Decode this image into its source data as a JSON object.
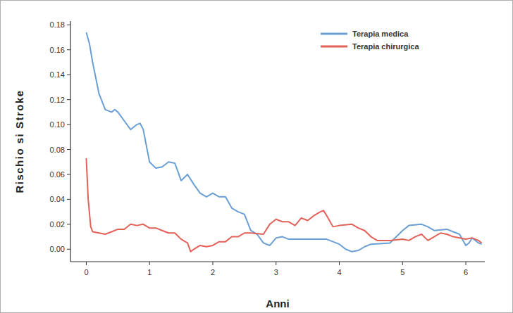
{
  "chart_data": {
    "type": "line",
    "x_label": "Anni",
    "y_label": "Rischio si Stroke",
    "legend": "top-right",
    "grid": false,
    "xlim": [
      -0.25,
      6.3
    ],
    "xticks": [
      0,
      1,
      2,
      3,
      4,
      5,
      6
    ],
    "ylim": [
      -0.01,
      0.183
    ],
    "yticks": [
      {
        "value": 0,
        "label": "0.00"
      },
      {
        "value": 0.02,
        "label": "0.02"
      },
      {
        "value": 0.04,
        "label": "0.04"
      },
      {
        "value": 0.06,
        "label": "0.06"
      },
      {
        "value": 0.08,
        "label": "0.08"
      },
      {
        "value": 0.1,
        "label": "0.10"
      },
      {
        "value": 0.12,
        "label": "0.12"
      },
      {
        "value": 0.14,
        "label": "0.14"
      },
      {
        "value": 0.16,
        "label": "0.16"
      },
      {
        "value": 0.18,
        "label": "0.18"
      }
    ],
    "series": [
      {
        "name": "Terapia medica",
        "color": "#6a9fd4",
        "x": [
          0,
          0.05,
          0.1,
          0.2,
          0.3,
          0.4,
          0.45,
          0.5,
          0.6,
          0.7,
          0.8,
          0.85,
          0.9,
          1.0,
          1.1,
          1.2,
          1.3,
          1.4,
          1.5,
          1.6,
          1.7,
          1.8,
          1.9,
          2.0,
          2.1,
          2.2,
          2.3,
          2.4,
          2.5,
          2.6,
          2.7,
          2.8,
          2.9,
          3.0,
          3.1,
          3.2,
          3.5,
          3.8,
          4.0,
          4.1,
          4.2,
          4.3,
          4.4,
          4.5,
          4.8,
          5.0,
          5.1,
          5.3,
          5.4,
          5.5,
          5.7,
          5.8,
          5.9,
          6.0,
          6.05,
          6.1,
          6.2,
          6.25
        ],
        "values": [
          0.174,
          0.165,
          0.15,
          0.125,
          0.112,
          0.11,
          0.112,
          0.11,
          0.103,
          0.096,
          0.1,
          0.101,
          0.096,
          0.07,
          0.065,
          0.066,
          0.07,
          0.069,
          0.055,
          0.06,
          0.052,
          0.045,
          0.042,
          0.045,
          0.042,
          0.042,
          0.033,
          0.03,
          0.028,
          0.015,
          0.012,
          0.005,
          0.003,
          0.009,
          0.01,
          0.008,
          0.008,
          0.008,
          0.004,
          0.0,
          -0.002,
          -0.001,
          0.002,
          0.004,
          0.005,
          0.015,
          0.019,
          0.02,
          0.018,
          0.015,
          0.016,
          0.014,
          0.012,
          0.003,
          0.005,
          0.009,
          0.005,
          0.004
        ]
      },
      {
        "name": "Terapia chirurgica",
        "color": "#e2625a",
        "x": [
          0,
          0.03,
          0.07,
          0.1,
          0.2,
          0.3,
          0.4,
          0.5,
          0.6,
          0.7,
          0.8,
          0.9,
          1.0,
          1.1,
          1.2,
          1.3,
          1.4,
          1.5,
          1.6,
          1.65,
          1.7,
          1.8,
          1.9,
          2.0,
          2.1,
          2.2,
          2.3,
          2.4,
          2.5,
          2.6,
          2.8,
          2.9,
          3.0,
          3.1,
          3.2,
          3.3,
          3.4,
          3.5,
          3.6,
          3.7,
          3.75,
          3.8,
          3.9,
          4.0,
          4.2,
          4.3,
          4.4,
          4.5,
          4.6,
          4.8,
          5.0,
          5.1,
          5.2,
          5.3,
          5.4,
          5.5,
          5.6,
          5.7,
          5.8,
          6.0,
          6.1,
          6.2,
          6.25
        ],
        "values": [
          0.073,
          0.04,
          0.018,
          0.014,
          0.013,
          0.012,
          0.014,
          0.016,
          0.016,
          0.02,
          0.019,
          0.02,
          0.017,
          0.017,
          0.015,
          0.013,
          0.013,
          0.008,
          0.005,
          -0.002,
          0.0,
          0.003,
          0.002,
          0.003,
          0.006,
          0.006,
          0.01,
          0.01,
          0.013,
          0.013,
          0.012,
          0.02,
          0.024,
          0.022,
          0.022,
          0.019,
          0.025,
          0.023,
          0.027,
          0.03,
          0.031,
          0.027,
          0.018,
          0.019,
          0.02,
          0.017,
          0.015,
          0.01,
          0.007,
          0.007,
          0.008,
          0.007,
          0.01,
          0.012,
          0.007,
          0.01,
          0.013,
          0.012,
          0.01,
          0.008,
          0.009,
          0.007,
          0.005
        ]
      }
    ]
  }
}
